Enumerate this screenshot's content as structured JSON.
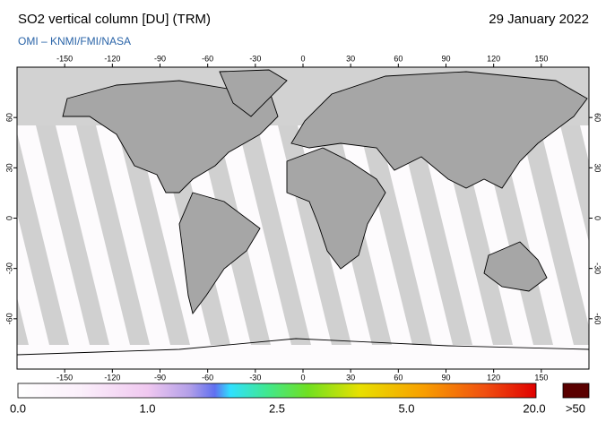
{
  "header": {
    "title": "SO2 vertical column [DU] (TRM)",
    "date": "29 January 2022",
    "subtitle": "OMI  –  KNMI/FMI/NASA"
  },
  "map": {
    "lon_range": [
      -180,
      180
    ],
    "lat_range": [
      -90,
      90
    ],
    "lon_ticks": [
      -150,
      -120,
      -90,
      -60,
      -30,
      0,
      30,
      60,
      90,
      120,
      150
    ],
    "lat_ticks": [
      60,
      30,
      0,
      -30,
      -60
    ]
  },
  "colorbar": {
    "labels": [
      "0.0",
      "1.0",
      "2.5",
      "5.0",
      "20.0"
    ],
    "overflow_label": ">50"
  }
}
